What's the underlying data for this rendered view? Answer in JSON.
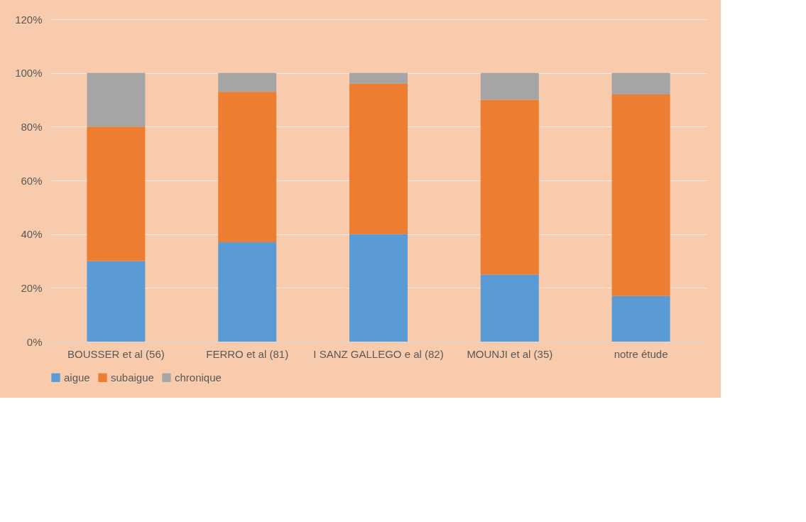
{
  "chart_data": {
    "type": "bar",
    "stacked": true,
    "categories": [
      "BOUSSER et al (56)",
      "FERRO et al (81)",
      "I SANZ GALLEGO e al (82)",
      "MOUNJI et al (35)",
      "notre étude"
    ],
    "series": [
      {
        "name": "aigue",
        "color": "#5b9bd5",
        "values": [
          30,
          37,
          40,
          25,
          17
        ]
      },
      {
        "name": "subaigue",
        "color": "#ed7d31",
        "values": [
          50,
          56,
          56,
          65,
          75
        ]
      },
      {
        "name": "chronique",
        "color": "#a5a5a5",
        "values": [
          20,
          7,
          4,
          10,
          8
        ]
      }
    ],
    "ylim": [
      0,
      120
    ],
    "yticks": [
      {
        "value": 0,
        "label": "0%"
      },
      {
        "value": 20,
        "label": "20%"
      },
      {
        "value": 40,
        "label": "40%"
      },
      {
        "value": 60,
        "label": "60%"
      },
      {
        "value": 80,
        "label": "80%"
      },
      {
        "value": 100,
        "label": "100%"
      },
      {
        "value": 120,
        "label": "120%"
      }
    ],
    "grid": "y",
    "legend": "bottom"
  }
}
